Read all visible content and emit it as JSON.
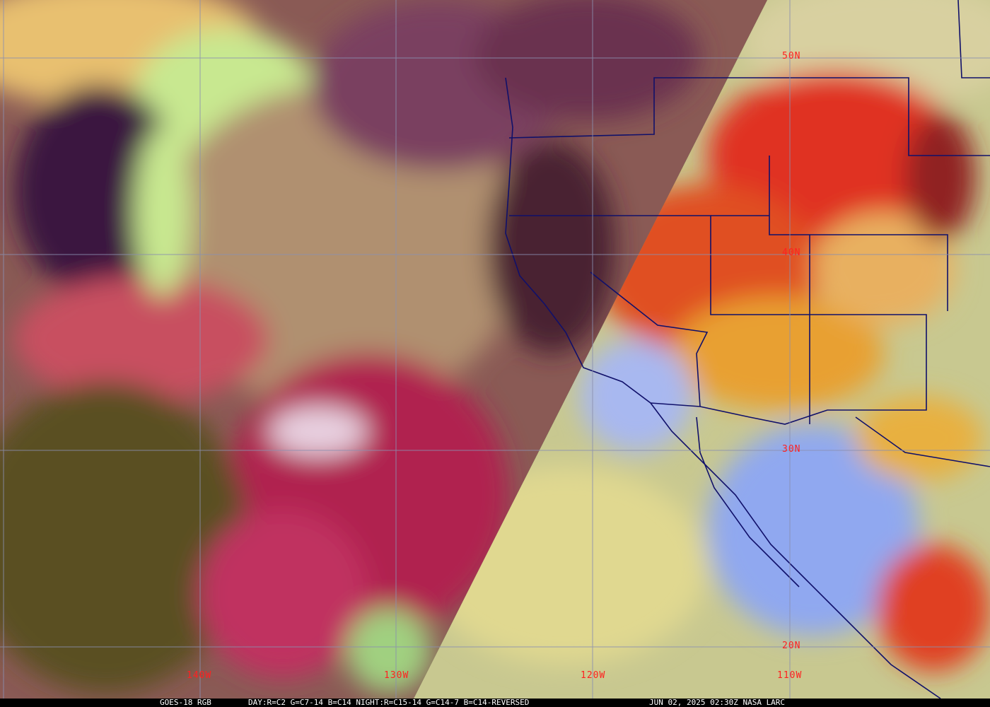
{
  "caption": {
    "satellite": "GOES-18 RGB",
    "recipe": "DAY:R=C2 G=C7-14 B=C14 NIGHT:R=C15-14 G=C14-7 B=C14-REVERSED",
    "timestamp": "JUN 02, 2025 02:30Z NASA LARC"
  },
  "grid_labels": {
    "lon": [
      "140W",
      "130W",
      "120W",
      "110W"
    ],
    "lat": [
      "50N",
      "40N",
      "30N",
      "20N"
    ]
  },
  "colors": {
    "label": "#ff2020",
    "grid": "#8a8fb0",
    "borders": "#10106a"
  }
}
